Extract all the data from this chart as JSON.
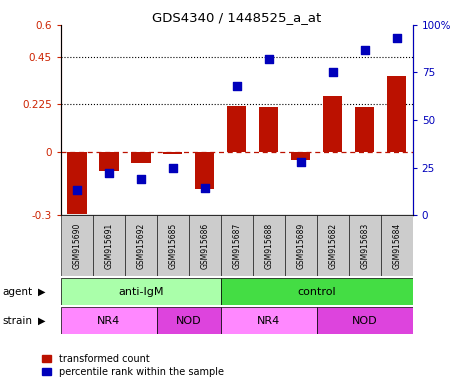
{
  "title": "GDS4340 / 1448525_a_at",
  "samples": [
    "GSM915690",
    "GSM915691",
    "GSM915692",
    "GSM915685",
    "GSM915686",
    "GSM915687",
    "GSM915688",
    "GSM915689",
    "GSM915682",
    "GSM915683",
    "GSM915684"
  ],
  "red_values": [
    -0.295,
    -0.09,
    -0.055,
    -0.01,
    -0.175,
    0.215,
    0.21,
    -0.04,
    0.265,
    0.21,
    0.36
  ],
  "blue_values": [
    0.13,
    0.22,
    0.19,
    0.25,
    0.14,
    0.68,
    0.82,
    0.28,
    0.75,
    0.87,
    0.93
  ],
  "left_ylim": [
    -0.3,
    0.6
  ],
  "right_ylim": [
    0,
    1.0
  ],
  "left_yticks": [
    -0.3,
    0,
    0.225,
    0.45,
    0.6
  ],
  "left_yticklabels": [
    "-0.3",
    "0",
    "0.225",
    "0.45",
    "0.6"
  ],
  "right_yticks": [
    0,
    0.25,
    0.5,
    0.75,
    1.0
  ],
  "right_yticklabels": [
    "0",
    "25",
    "50",
    "75",
    "100%"
  ],
  "hlines": [
    0.225,
    0.45
  ],
  "dashed_line": 0.0,
  "agent_groups": [
    {
      "label": "anti-IgM",
      "start": 0,
      "end": 5,
      "color": "#aaffaa"
    },
    {
      "label": "control",
      "start": 5,
      "end": 11,
      "color": "#44dd44"
    }
  ],
  "strain_groups": [
    {
      "label": "NR4",
      "start": 0,
      "end": 3,
      "color": "#ff88ff"
    },
    {
      "label": "NOD",
      "start": 3,
      "end": 5,
      "color": "#dd44dd"
    },
    {
      "label": "NR4",
      "start": 5,
      "end": 8,
      "color": "#ff88ff"
    },
    {
      "label": "NOD",
      "start": 8,
      "end": 11,
      "color": "#dd44dd"
    }
  ],
  "bar_color": "#BB1100",
  "dot_color": "#0000BB",
  "bar_width": 0.6,
  "dot_size": 28,
  "legend_red": "transformed count",
  "legend_blue": "percentile rank within the sample",
  "agent_label": "agent",
  "strain_label": "strain",
  "sample_bg": "#cccccc",
  "left_axis_color": "#CC2200",
  "right_axis_color": "#0000BB"
}
